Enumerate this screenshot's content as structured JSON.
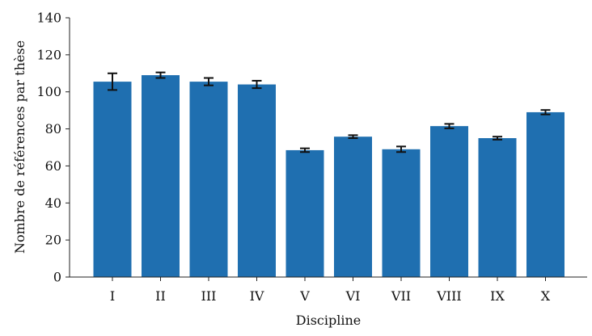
{
  "chart_data": {
    "type": "bar",
    "title": "",
    "xlabel": "Discipline",
    "ylabel": "Nombre de références par thèse",
    "categories": [
      "I",
      "II",
      "III",
      "IV",
      "V",
      "VI",
      "VII",
      "VIII",
      "IX",
      "X"
    ],
    "values": [
      105.5,
      109,
      105.5,
      104,
      68.5,
      75.8,
      69,
      81.5,
      75,
      89
    ],
    "error": [
      4.5,
      1.5,
      2,
      2,
      1,
      0.8,
      1.5,
      1.2,
      0.8,
      1.2
    ],
    "ylim": [
      0,
      140
    ],
    "yticks": [
      0,
      20,
      40,
      60,
      80,
      100,
      120,
      140
    ],
    "grid": false,
    "colors": {
      "bar": "#1f6fb0",
      "error": "#111111",
      "axis": "#222222"
    }
  }
}
